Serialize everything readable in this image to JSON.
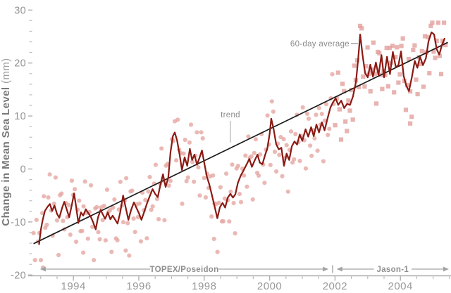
{
  "chart_data": {
    "type": "scatter",
    "title": "",
    "ylabel_main": "Change in Mean Sea Level",
    "ylabel_unit": " (mm)",
    "xlabel": "",
    "xlim": [
      1992.6,
      2005.55
    ],
    "ylim": [
      -20,
      31.5
    ],
    "grid": false,
    "y_major_ticks": [
      30,
      20,
      10,
      0,
      -10,
      -20
    ],
    "y_minor_step": 2,
    "x_major_ticks": [
      1994,
      1996,
      1998,
      2000,
      2002,
      2004
    ],
    "x_minor_step": 0.5,
    "x_minor_range": [
      1993.0,
      2005.5
    ],
    "annotations": {
      "average_label": "60-day average",
      "trend_label": "trend"
    },
    "missions": [
      {
        "label": "TOPEX/Poseidon",
        "t_from": 1992.98,
        "t_to": 2001.8,
        "marker": "circle"
      },
      {
        "label": "Jason-1",
        "t_from": 2002.05,
        "t_to": 2005.48,
        "marker": "square"
      }
    ],
    "colors": {
      "scatter_topex": "#e5a7a3",
      "scatter_jason": "#e2a09c",
      "average_line": "#8a1a13",
      "trend_line": "#1c1c1c",
      "axis": "#b0b0b0",
      "tick_label": "#949494",
      "annotation": "#8a8a8a",
      "arrow": "#a3a3a3"
    },
    "trend": {
      "points": [
        [
          1992.78,
          -14.1
        ],
        [
          2005.45,
          23.9
        ]
      ],
      "slope_mm_per_year_approx": 3.0
    },
    "series": {
      "average_60day": [
        [
          1992.95,
          -14.2
        ],
        [
          1993.0,
          -11.6
        ],
        [
          1993.06,
          -9.6
        ],
        [
          1993.13,
          -7.9
        ],
        [
          1993.2,
          -7.2
        ],
        [
          1993.28,
          -6.6
        ],
        [
          1993.35,
          -7.9
        ],
        [
          1993.42,
          -6.9
        ],
        [
          1993.5,
          -8.5
        ],
        [
          1993.57,
          -9.2
        ],
        [
          1993.65,
          -7.4
        ],
        [
          1993.72,
          -6.2
        ],
        [
          1993.8,
          -7.7
        ],
        [
          1993.87,
          -9.1
        ],
        [
          1993.95,
          -6.8
        ],
        [
          1994.02,
          -4.6
        ],
        [
          1994.08,
          -7.0
        ],
        [
          1994.15,
          -10.2
        ],
        [
          1994.23,
          -8.2
        ],
        [
          1994.3,
          -8.8
        ],
        [
          1994.38,
          -7.6
        ],
        [
          1994.45,
          -8.3
        ],
        [
          1994.53,
          -9.0
        ],
        [
          1994.6,
          -10.0
        ],
        [
          1994.68,
          -11.4
        ],
        [
          1994.75,
          -9.2
        ],
        [
          1994.83,
          -7.7
        ],
        [
          1994.9,
          -8.6
        ],
        [
          1994.97,
          -9.4
        ],
        [
          1995.05,
          -8.2
        ],
        [
          1995.13,
          -9.5
        ],
        [
          1995.2,
          -8.8
        ],
        [
          1995.28,
          -9.6
        ],
        [
          1995.35,
          -10.3
        ],
        [
          1995.43,
          -8.2
        ],
        [
          1995.52,
          -5.0
        ],
        [
          1995.6,
          -7.3
        ],
        [
          1995.68,
          -9.6
        ],
        [
          1995.76,
          -7.8
        ],
        [
          1995.85,
          -6.3
        ],
        [
          1995.93,
          -7.4
        ],
        [
          1996.0,
          -8.3
        ],
        [
          1996.08,
          -9.6
        ],
        [
          1996.16,
          -8.2
        ],
        [
          1996.25,
          -6.5
        ],
        [
          1996.33,
          -5.2
        ],
        [
          1996.42,
          -3.8
        ],
        [
          1996.5,
          -4.7
        ],
        [
          1996.58,
          -5.3
        ],
        [
          1996.66,
          -3.0
        ],
        [
          1996.74,
          -1.0
        ],
        [
          1996.82,
          -3.4
        ],
        [
          1996.9,
          -1.6
        ],
        [
          1996.97,
          3.2
        ],
        [
          1997.04,
          6.2
        ],
        [
          1997.1,
          6.9
        ],
        [
          1997.17,
          5.4
        ],
        [
          1997.25,
          2.6
        ],
        [
          1997.32,
          -0.2
        ],
        [
          1997.4,
          2.2
        ],
        [
          1997.48,
          0.6
        ],
        [
          1997.56,
          3.8
        ],
        [
          1997.63,
          1.7
        ],
        [
          1997.7,
          2.7
        ],
        [
          1997.78,
          0.8
        ],
        [
          1997.86,
          2.2
        ],
        [
          1997.93,
          3.5
        ],
        [
          1998.0,
          1.2
        ],
        [
          1998.08,
          -1.4
        ],
        [
          1998.16,
          -3.0
        ],
        [
          1998.25,
          -5.3
        ],
        [
          1998.33,
          -7.4
        ],
        [
          1998.4,
          -9.3
        ],
        [
          1998.48,
          -7.2
        ],
        [
          1998.56,
          -6.4
        ],
        [
          1998.64,
          -7.3
        ],
        [
          1998.72,
          -5.4
        ],
        [
          1998.8,
          -4.7
        ],
        [
          1998.88,
          -5.4
        ],
        [
          1998.95,
          -4.8
        ],
        [
          1999.03,
          -2.6
        ],
        [
          1999.12,
          -1.2
        ],
        [
          1999.2,
          -0.3
        ],
        [
          1999.3,
          0.9
        ],
        [
          1999.38,
          1.9
        ],
        [
          1999.46,
          0.4
        ],
        [
          1999.55,
          1.7
        ],
        [
          1999.63,
          2.7
        ],
        [
          1999.7,
          1.2
        ],
        [
          1999.78,
          0.9
        ],
        [
          1999.86,
          2.6
        ],
        [
          1999.93,
          3.9
        ],
        [
          2000.0,
          6.6
        ],
        [
          2000.05,
          9.5
        ],
        [
          2000.12,
          7.6
        ],
        [
          2000.2,
          4.7
        ],
        [
          2000.28,
          3.7
        ],
        [
          2000.36,
          4.0
        ],
        [
          2000.44,
          0.6
        ],
        [
          2000.52,
          2.9
        ],
        [
          2000.6,
          1.7
        ],
        [
          2000.68,
          4.3
        ],
        [
          2000.76,
          5.2
        ],
        [
          2000.84,
          4.6
        ],
        [
          2000.92,
          6.5
        ],
        [
          2001.0,
          5.3
        ],
        [
          2001.1,
          7.5
        ],
        [
          2001.18,
          6.1
        ],
        [
          2001.27,
          7.9
        ],
        [
          2001.35,
          6.2
        ],
        [
          2001.43,
          8.4
        ],
        [
          2001.51,
          6.9
        ],
        [
          2001.6,
          8.8
        ],
        [
          2001.68,
          7.3
        ],
        [
          2001.77,
          9.5
        ],
        [
          2001.86,
          11.6
        ],
        [
          2001.94,
          12.6
        ],
        [
          2002.02,
          13.3
        ],
        [
          2002.1,
          12.1
        ],
        [
          2002.19,
          12.9
        ],
        [
          2002.28,
          11.5
        ],
        [
          2002.37,
          12.3
        ],
        [
          2002.46,
          12.1
        ],
        [
          2002.55,
          13.7
        ],
        [
          2002.64,
          16.4
        ],
        [
          2002.71,
          20.8
        ],
        [
          2002.77,
          25.4
        ],
        [
          2002.84,
          21.6
        ],
        [
          2002.92,
          18.1
        ],
        [
          2003.0,
          17.3
        ],
        [
          2003.08,
          19.7
        ],
        [
          2003.16,
          17.4
        ],
        [
          2003.25,
          20.1
        ],
        [
          2003.33,
          17.7
        ],
        [
          2003.42,
          21.5
        ],
        [
          2003.5,
          17.3
        ],
        [
          2003.59,
          21.2
        ],
        [
          2003.68,
          17.9
        ],
        [
          2003.77,
          22.1
        ],
        [
          2003.86,
          19.2
        ],
        [
          2003.94,
          19.6
        ],
        [
          2004.02,
          22.2
        ],
        [
          2004.1,
          17.6
        ],
        [
          2004.18,
          15.7
        ],
        [
          2004.26,
          14.7
        ],
        [
          2004.35,
          17.3
        ],
        [
          2004.44,
          20.4
        ],
        [
          2004.52,
          19.1
        ],
        [
          2004.6,
          21.2
        ],
        [
          2004.69,
          19.6
        ],
        [
          2004.78,
          20.9
        ],
        [
          2004.86,
          24.1
        ],
        [
          2004.95,
          25.8
        ],
        [
          2005.03,
          25.4
        ],
        [
          2005.11,
          22.6
        ],
        [
          2005.19,
          21.6
        ],
        [
          2005.27,
          23.4
        ],
        [
          2005.35,
          24.6
        ]
      ]
    },
    "scatter": {
      "description": "10-day individual altimeter measurements scattered around the 60-day average",
      "t_start": 1992.78,
      "t_end": 2005.38,
      "dt": 0.045,
      "marker_switch_year": 2002.0,
      "offsets_cycle": [
        1.4,
        -3.2,
        4.3,
        -0.9,
        2.2,
        -5.0,
        0.6,
        3.6,
        -2.4,
        -4.4,
        1.9,
        5.1,
        -1.2,
        -3.8,
        0.2,
        4.6,
        -0.6,
        -5.8,
        2.8,
        3.1,
        -2.0,
        -6.3,
        1.0,
        -1.6
      ],
      "fine_cycle": [
        0.7,
        -1.1,
        0.3,
        1.4,
        -0.6,
        -1.5,
        1.0,
        0.0,
        -0.9,
        1.2,
        -0.3,
        0.5
      ],
      "clip_mm": [
        -17.2,
        27.6
      ],
      "outliers": [
        [
          1993.07,
          -18.6
        ],
        [
          1994.3,
          -15.8
        ],
        [
          1995.6,
          -15.4
        ],
        [
          1998.3,
          -13.2
        ],
        [
          2004.3,
          8.6
        ]
      ]
    }
  }
}
